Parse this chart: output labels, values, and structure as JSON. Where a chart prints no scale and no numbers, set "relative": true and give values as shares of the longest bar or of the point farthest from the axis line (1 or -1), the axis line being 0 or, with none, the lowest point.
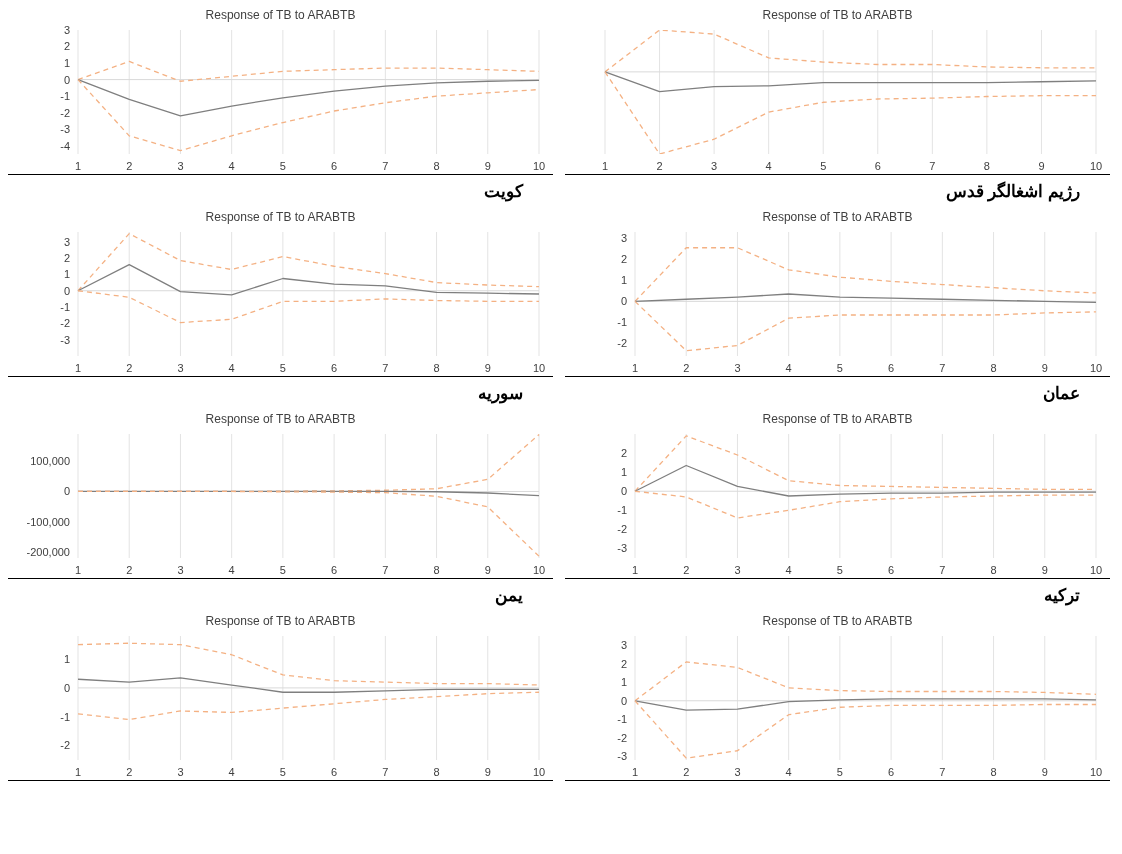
{
  "chart_data": [
    {
      "type": "line",
      "title": "Response of TB to ARABTB",
      "annotations": [
        "کویت"
      ],
      "categories": [
        "1",
        "2",
        "3",
        "4",
        "5",
        "6",
        "7",
        "8",
        "9",
        "10"
      ],
      "ylim": [
        -4.5,
        3
      ],
      "yticks": [
        -4,
        -3,
        -2,
        -1,
        0,
        1,
        2,
        3
      ],
      "grid": "x",
      "ref_lines": [
        {
          "axis": "y",
          "value": 0,
          "color": "#d9d9d9"
        }
      ],
      "series": [
        {
          "color": "#f4b183",
          "line_style": "dashed",
          "values": [
            0,
            1.1,
            -0.1,
            0.2,
            0.5,
            0.6,
            0.7,
            0.7,
            0.6,
            0.5
          ]
        },
        {
          "color": "#7f7f7f",
          "line_style": "solid",
          "values": [
            0,
            -1.2,
            -2.2,
            -1.6,
            -1.1,
            -0.7,
            -0.4,
            -0.2,
            -0.1,
            -0.05
          ]
        },
        {
          "color": "#f4b183",
          "line_style": "dashed",
          "values": [
            0,
            -3.4,
            -4.3,
            -3.4,
            -2.6,
            -1.9,
            -1.4,
            -1.0,
            -0.8,
            -0.6
          ]
        }
      ]
    },
    {
      "type": "line",
      "title": "Response of TB to ARABTB",
      "annotations": [
        "رژیم اشغالگر قدس"
      ],
      "categories": [
        "1",
        "2",
        "3",
        "4",
        "5",
        "6",
        "7",
        "8",
        "9",
        "10"
      ],
      "relative": true,
      "grid": "x",
      "ref_lines": [
        {
          "axis": "y",
          "value": 0,
          "color": "#d9d9d9"
        }
      ],
      "series": [
        {
          "color": "#f4b183",
          "line_style": "dashed",
          "values": [
            0,
            0.51,
            0.46,
            0.17,
            0.12,
            0.09,
            0.09,
            0.06,
            0.05,
            0.05
          ]
        },
        {
          "color": "#7f7f7f",
          "line_style": "solid",
          "values": [
            0,
            -0.24,
            -0.18,
            -0.17,
            -0.13,
            -0.13,
            -0.13,
            -0.13,
            -0.12,
            -0.11
          ]
        },
        {
          "color": "#f4b183",
          "line_style": "dashed",
          "values": [
            0,
            -1,
            -0.82,
            -0.49,
            -0.37,
            -0.33,
            -0.32,
            -0.3,
            -0.29,
            -0.29
          ]
        }
      ]
    },
    {
      "type": "line",
      "title": "Response of TB to ARABTB",
      "annotations": [
        "سوریه"
      ],
      "categories": [
        "1",
        "2",
        "3",
        "4",
        "5",
        "6",
        "7",
        "8",
        "9",
        "10"
      ],
      "ylim": [
        -4,
        3.6
      ],
      "yticks": [
        -3,
        -2,
        -1,
        0,
        1,
        2,
        3
      ],
      "grid": "x",
      "ref_lines": [
        {
          "axis": "y",
          "value": 0,
          "color": "#d9d9d9"
        }
      ],
      "series": [
        {
          "color": "#f4b183",
          "line_style": "dashed",
          "values": [
            0,
            3.5,
            1.85,
            1.3,
            2.1,
            1.5,
            1.05,
            0.5,
            0.35,
            0.25
          ]
        },
        {
          "color": "#7f7f7f",
          "line_style": "solid",
          "values": [
            0,
            1.6,
            -0.05,
            -0.25,
            0.75,
            0.4,
            0.3,
            -0.1,
            -0.15,
            -0.2
          ]
        },
        {
          "color": "#f4b183",
          "line_style": "dashed",
          "values": [
            0,
            -0.4,
            -1.95,
            -1.75,
            -0.65,
            -0.65,
            -0.5,
            -0.6,
            -0.65,
            -0.65
          ]
        }
      ]
    },
    {
      "type": "line",
      "title": "Response of TB to ARABTB",
      "annotations": [
        "عمان"
      ],
      "categories": [
        "1",
        "2",
        "3",
        "4",
        "5",
        "6",
        "7",
        "8",
        "9",
        "10"
      ],
      "ylim": [
        -2.6,
        3.3
      ],
      "yticks": [
        -2,
        -1,
        0,
        1,
        2,
        3
      ],
      "grid": "x",
      "ref_lines": [
        {
          "axis": "y",
          "value": 0,
          "color": "#d9d9d9"
        }
      ],
      "series": [
        {
          "color": "#f4b183",
          "line_style": "dashed",
          "values": [
            0,
            2.55,
            2.55,
            1.5,
            1.15,
            0.95,
            0.8,
            0.65,
            0.5,
            0.4
          ]
        },
        {
          "color": "#7f7f7f",
          "line_style": "solid",
          "values": [
            0,
            0.1,
            0.2,
            0.35,
            0.2,
            0.15,
            0.1,
            0.05,
            0,
            -0.05
          ]
        },
        {
          "color": "#f4b183",
          "line_style": "dashed",
          "values": [
            0,
            -2.35,
            -2.1,
            -0.8,
            -0.65,
            -0.65,
            -0.65,
            -0.65,
            -0.55,
            -0.5
          ]
        }
      ]
    },
    {
      "type": "line",
      "title": "Response of TB to ARABTB",
      "annotations": [
        "یمن"
      ],
      "categories": [
        "1",
        "2",
        "3",
        "4",
        "5",
        "6",
        "7",
        "8",
        "9",
        "10"
      ],
      "ylim": [
        -220000,
        190000
      ],
      "yticks": [
        {
          "value": -200000,
          "label": "-200,000"
        },
        {
          "value": -100000,
          "label": "-100,000"
        },
        0,
        {
          "value": 100000,
          "label": "100,000"
        }
      ],
      "grid": "x",
      "ref_lines": [
        {
          "axis": "y",
          "value": 0,
          "color": "#d9d9d9"
        }
      ],
      "series": [
        {
          "color": "#f4b183",
          "line_style": "dashed",
          "values": [
            0,
            0,
            0,
            0,
            1000,
            2000,
            4000,
            9000,
            40000,
            188000
          ]
        },
        {
          "color": "#7f7f7f",
          "line_style": "solid",
          "values": [
            0,
            0,
            0,
            0,
            0,
            0,
            0,
            -1000,
            -5000,
            -14000
          ]
        },
        {
          "color": "#f4b183",
          "line_style": "dashed",
          "values": [
            0,
            0,
            0,
            0,
            -1000,
            -2000,
            -4000,
            -16000,
            -51000,
            -214000
          ]
        }
      ]
    },
    {
      "type": "line",
      "title": "Response of TB to ARABTB",
      "annotations": [
        "ترکیه"
      ],
      "categories": [
        "1",
        "2",
        "3",
        "4",
        "5",
        "6",
        "7",
        "8",
        "9",
        "10"
      ],
      "ylim": [
        -3.5,
        3
      ],
      "yticks": [
        -3,
        -2,
        -1,
        0,
        1,
        2
      ],
      "grid": "x",
      "ref_lines": [
        {
          "axis": "y",
          "value": 0,
          "color": "#d9d9d9"
        }
      ],
      "series": [
        {
          "color": "#f4b183",
          "line_style": "dashed",
          "values": [
            0,
            2.9,
            1.9,
            0.55,
            0.3,
            0.25,
            0.2,
            0.15,
            0.1,
            0.1
          ]
        },
        {
          "color": "#7f7f7f",
          "line_style": "solid",
          "values": [
            0,
            1.35,
            0.25,
            -0.25,
            -0.15,
            -0.1,
            -0.1,
            -0.05,
            -0.05,
            -0.05
          ]
        },
        {
          "color": "#f4b183",
          "line_style": "dashed",
          "values": [
            0,
            -0.3,
            -1.4,
            -1.0,
            -0.55,
            -0.4,
            -0.3,
            -0.25,
            -0.2,
            -0.2
          ]
        }
      ]
    },
    {
      "type": "line",
      "title": "Response of TB to ARABTB",
      "categories": [
        "1",
        "2",
        "3",
        "4",
        "5",
        "6",
        "7",
        "8",
        "9",
        "10"
      ],
      "ylim": [
        -2.5,
        1.8
      ],
      "yticks": [
        -2,
        -1,
        0,
        1
      ],
      "grid": "x",
      "ref_lines": [
        {
          "axis": "y",
          "value": 0,
          "color": "#d9d9d9"
        }
      ],
      "series": [
        {
          "color": "#f4b183",
          "line_style": "dashed",
          "values": [
            1.5,
            1.55,
            1.5,
            1.15,
            0.45,
            0.25,
            0.2,
            0.15,
            0.15,
            0.1
          ]
        },
        {
          "color": "#7f7f7f",
          "line_style": "solid",
          "values": [
            0.3,
            0.2,
            0.35,
            0.1,
            -0.15,
            -0.15,
            -0.1,
            -0.05,
            -0.05,
            -0.05
          ]
        },
        {
          "color": "#f4b183",
          "line_style": "dashed",
          "values": [
            -0.9,
            -1.1,
            -0.8,
            -0.85,
            -0.7,
            -0.55,
            -0.4,
            -0.3,
            -0.2,
            -0.15
          ]
        }
      ]
    },
    {
      "type": "line",
      "title": "Response of TB to ARABTB",
      "categories": [
        "1",
        "2",
        "3",
        "4",
        "5",
        "6",
        "7",
        "8",
        "9",
        "10"
      ],
      "ylim": [
        -3.2,
        3.5
      ],
      "yticks": [
        -3,
        -2,
        -1,
        0,
        1,
        2,
        3
      ],
      "grid": "x",
      "ref_lines": [
        {
          "axis": "y",
          "value": 0,
          "color": "#d9d9d9"
        }
      ],
      "series": [
        {
          "color": "#f4b183",
          "line_style": "dashed",
          "values": [
            0,
            2.1,
            1.8,
            0.7,
            0.55,
            0.5,
            0.5,
            0.5,
            0.45,
            0.35
          ]
        },
        {
          "color": "#7f7f7f",
          "line_style": "solid",
          "values": [
            0,
            -0.5,
            -0.45,
            -0.05,
            0.05,
            0.1,
            0.1,
            0.1,
            0.1,
            0.05
          ]
        },
        {
          "color": "#f4b183",
          "line_style": "dashed",
          "values": [
            0,
            -3.1,
            -2.7,
            -0.75,
            -0.35,
            -0.25,
            -0.25,
            -0.25,
            -0.2,
            -0.2
          ]
        }
      ]
    }
  ]
}
